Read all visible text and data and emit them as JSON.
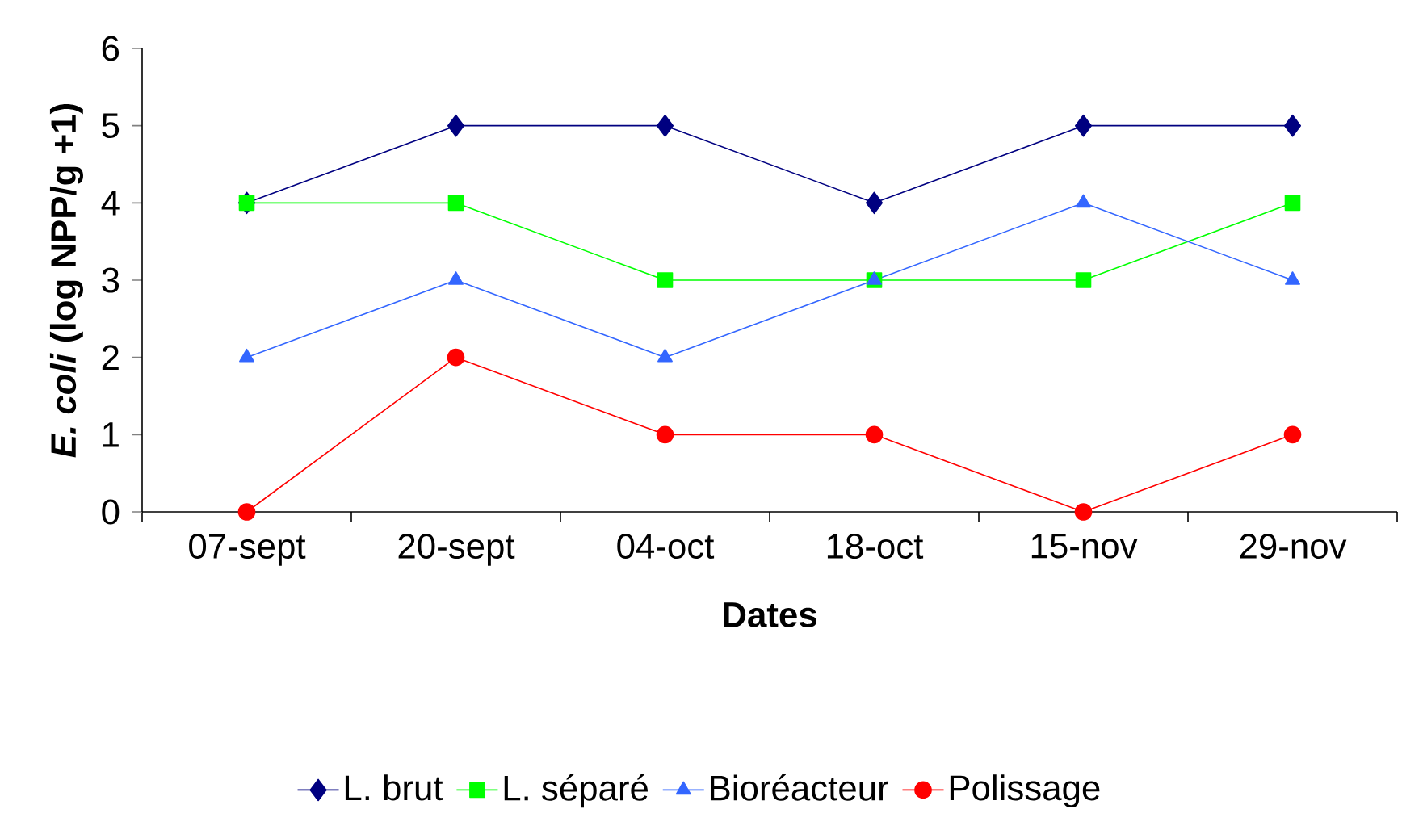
{
  "chart_data": {
    "type": "line",
    "xlabel": "Dates",
    "ylabel": "*E. coli* (log NPP/g +1)",
    "categories": [
      "07-sept",
      "20-sept",
      "04-oct",
      "18-oct",
      "15-nov",
      "29-nov"
    ],
    "ylim": [
      0,
      6
    ],
    "yticks": [
      0,
      1,
      2,
      3,
      4,
      5,
      6
    ],
    "grid": false,
    "legend": "bottom",
    "line_style": "solid",
    "series": [
      {
        "name": "L. brut",
        "color": "#000080",
        "marker": "diamond",
        "values": [
          4,
          5,
          5,
          4,
          5,
          5
        ]
      },
      {
        "name": "L. séparé",
        "color": "#00ff00",
        "marker": "square",
        "values": [
          4,
          4,
          3,
          3,
          3,
          4
        ]
      },
      {
        "name": "Bioréacteur",
        "color": "#3366ff",
        "marker": "triangle",
        "values": [
          2,
          3,
          2,
          3,
          4,
          3
        ]
      },
      {
        "name": "Polissage",
        "color": "#ff0000",
        "marker": "circle",
        "values": [
          0,
          2,
          1,
          1,
          0,
          1
        ]
      }
    ]
  }
}
